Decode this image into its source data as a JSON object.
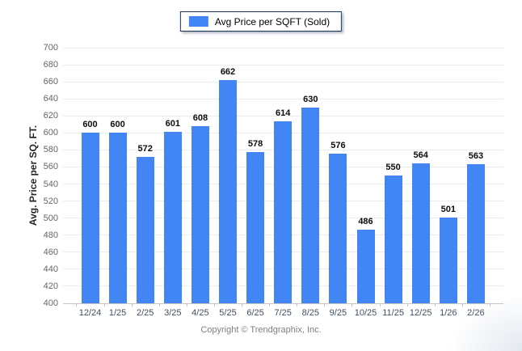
{
  "legend": {
    "label": "Avg Price per SQFT (Sold)",
    "swatch_color": "#4285f4"
  },
  "footer": {
    "copyright": "Copyright © Trendgraphix, Inc."
  },
  "chart_data": {
    "type": "bar",
    "title": "",
    "series_name": "Avg Price per SQFT (Sold)",
    "categories": [
      "12/24",
      "1/25",
      "2/25",
      "3/25",
      "4/25",
      "5/25",
      "6/25",
      "7/25",
      "8/25",
      "9/25",
      "10/25",
      "11/25",
      "12/25",
      "1/26",
      "2/26"
    ],
    "values": [
      600,
      600,
      572,
      601,
      608,
      662,
      578,
      614,
      630,
      576,
      486,
      550,
      564,
      501,
      563
    ],
    "xlabel": "",
    "ylabel": "Avg. Price per SQ. FT.",
    "ylim": [
      400,
      700
    ],
    "ytick_step": 20,
    "grid": true,
    "legend_position": "top",
    "bar_color": "#4285f4",
    "gridline_color": "#ececec",
    "baseline_color": "#c6c6c6"
  }
}
